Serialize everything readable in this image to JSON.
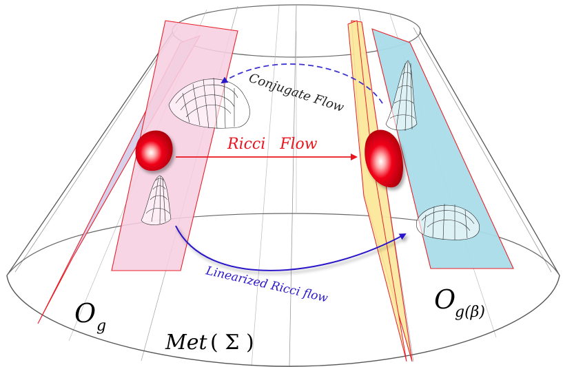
{
  "labels": {
    "ricci_flow": "Ricci   Flow",
    "conjugate_flow": "Conjugate Flow",
    "linearized_ricci_flow": "Linearized Ricci flow",
    "orbit_g_main": "O",
    "orbit_g_sub": "g",
    "orbit_gbeta_main": "O",
    "orbit_gbeta_sub": "g(β)",
    "met_prefix": "Met",
    "met_arg": "( Σ )"
  },
  "colors": {
    "ricci_flow": "#e8141e",
    "conjugate_flow": "#3a2fd0",
    "linearized_flow": "#2a18c8",
    "slice_pink": "#f6cfe0",
    "slice_lavender": "#cfc8e6",
    "slice_yellow": "#fbe9a0",
    "slice_blue": "#a9dce8",
    "slice_edge": "#e8202a",
    "blob": "#e00010"
  }
}
